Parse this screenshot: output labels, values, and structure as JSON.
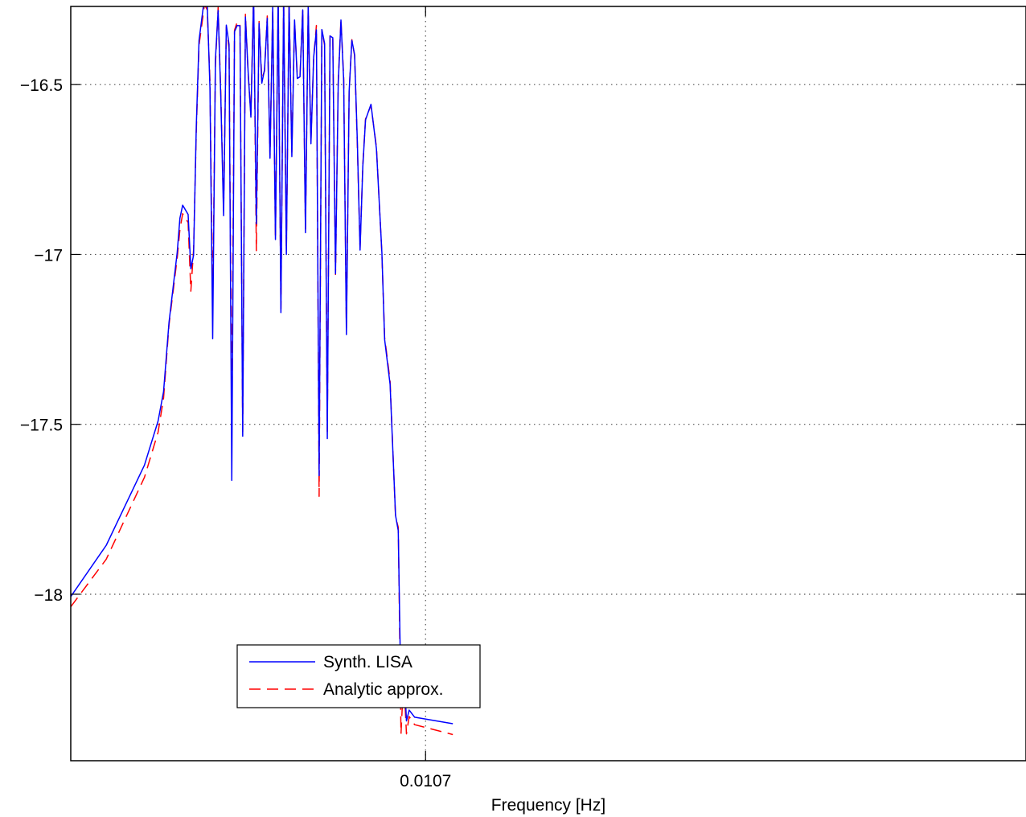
{
  "chart_data": {
    "type": "line",
    "title": "",
    "xlabel": "Frequency [Hz]",
    "ylabel": "",
    "xtick_labels": [
      {
        "value": 0.0107,
        "label": "0.0107"
      }
    ],
    "ytick_labels": [
      {
        "value": -16.5,
        "label": "−16.5"
      },
      {
        "value": -17.0,
        "label": "−17"
      },
      {
        "value": -17.5,
        "label": "−17.5"
      },
      {
        "value": -18.0,
        "label": "−18"
      }
    ],
    "xlim": [
      0.01057,
      0.01092
    ],
    "ylim": [
      -18.49,
      -16.27
    ],
    "grid": true,
    "legend_position": "lower-left",
    "series": [
      {
        "name": "Synth. LISA",
        "color": "#0000ff",
        "style": "solid",
        "points": [
          [
            0.01057,
            -18.007
          ],
          [
            0.010583,
            -17.856
          ],
          [
            0.010597,
            -17.62
          ],
          [
            0.010602,
            -17.49
          ],
          [
            0.010604,
            -17.404
          ],
          [
            0.010606,
            -17.2
          ],
          [
            0.010609,
            -16.994
          ],
          [
            0.01061,
            -16.893
          ],
          [
            0.010611,
            -16.855
          ],
          [
            0.010613,
            -16.882
          ],
          [
            0.010614,
            -17.042
          ],
          [
            0.010615,
            -17.002
          ],
          [
            0.010616,
            -16.621
          ],
          [
            0.010617,
            -16.37
          ],
          [
            0.010619,
            -16.244
          ],
          [
            0.01062,
            -16.262
          ],
          [
            0.010621,
            -16.509
          ],
          [
            0.010622,
            -17.248
          ],
          [
            0.010623,
            -16.426
          ],
          [
            0.010624,
            -16.282
          ],
          [
            0.010625,
            -16.544
          ],
          [
            0.010626,
            -16.886
          ],
          [
            0.010627,
            -16.325
          ],
          [
            0.010628,
            -16.382
          ],
          [
            0.010629,
            -17.665
          ],
          [
            0.01063,
            -16.344
          ],
          [
            0.010631,
            -16.326
          ],
          [
            0.010632,
            -16.327
          ],
          [
            0.010633,
            -17.535
          ],
          [
            0.010634,
            -16.301
          ],
          [
            0.010635,
            -16.464
          ],
          [
            0.010636,
            -16.596
          ],
          [
            0.010637,
            -16.236
          ],
          [
            0.010638,
            -16.91
          ],
          [
            0.010639,
            -16.32
          ],
          [
            0.01064,
            -16.496
          ],
          [
            0.010641,
            -16.456
          ],
          [
            0.010642,
            -16.305
          ],
          [
            0.010643,
            -16.717
          ],
          [
            0.010644,
            -16.273
          ],
          [
            0.010645,
            -16.956
          ],
          [
            0.010646,
            -16.236
          ],
          [
            0.010647,
            -17.171
          ],
          [
            0.010648,
            -16.238
          ],
          [
            0.010649,
            -17.0
          ],
          [
            0.01065,
            -16.259
          ],
          [
            0.010651,
            -16.712
          ],
          [
            0.010652,
            -16.31
          ],
          [
            0.010653,
            -16.482
          ],
          [
            0.010654,
            -16.477
          ],
          [
            0.010655,
            -16.28
          ],
          [
            0.010656,
            -16.936
          ],
          [
            0.010657,
            -16.269
          ],
          [
            0.010658,
            -16.674
          ],
          [
            0.010659,
            -16.42
          ],
          [
            0.01066,
            -16.339
          ],
          [
            0.010661,
            -17.651
          ],
          [
            0.010662,
            -16.338
          ],
          [
            0.010663,
            -16.379
          ],
          [
            0.010664,
            -17.542
          ],
          [
            0.010665,
            -16.357
          ],
          [
            0.010666,
            -16.362
          ],
          [
            0.010667,
            -17.057
          ],
          [
            0.010668,
            -16.498
          ],
          [
            0.010669,
            -16.31
          ],
          [
            0.01067,
            -16.487
          ],
          [
            0.010671,
            -17.236
          ],
          [
            0.010672,
            -16.519
          ],
          [
            0.010673,
            -16.37
          ],
          [
            0.010674,
            -16.412
          ],
          [
            0.010675,
            -16.667
          ],
          [
            0.010676,
            -16.987
          ],
          [
            0.010677,
            -16.742
          ],
          [
            0.010678,
            -16.604
          ],
          [
            0.01068,
            -16.558
          ],
          [
            0.010682,
            -16.689
          ],
          [
            0.010684,
            -16.995
          ],
          [
            0.010685,
            -17.25
          ],
          [
            0.010687,
            -17.382
          ],
          [
            0.010689,
            -17.768
          ],
          [
            0.01069,
            -17.813
          ],
          [
            0.010691,
            -18.317
          ],
          [
            0.010692,
            -18.206
          ],
          [
            0.010693,
            -18.373
          ],
          [
            0.010694,
            -18.341
          ],
          [
            0.010696,
            -18.362
          ],
          [
            0.01071,
            -18.381
          ]
        ]
      },
      {
        "name": "Analytic approx.",
        "color": "#ff0000",
        "style": "dashed",
        "points": [
          [
            0.01057,
            -18.037
          ],
          [
            0.010583,
            -17.897
          ],
          [
            0.010597,
            -17.656
          ],
          [
            0.010602,
            -17.523
          ],
          [
            0.010604,
            -17.423
          ],
          [
            0.010606,
            -17.207
          ],
          [
            0.010609,
            -17.01
          ],
          [
            0.01061,
            -16.926
          ],
          [
            0.010611,
            -16.88
          ],
          [
            0.010613,
            -16.906
          ],
          [
            0.010614,
            -17.108
          ],
          [
            0.010615,
            -16.986
          ],
          [
            0.010616,
            -16.636
          ],
          [
            0.010617,
            -16.384
          ],
          [
            0.010619,
            -16.264
          ],
          [
            0.01062,
            -16.28
          ],
          [
            0.010621,
            -16.487
          ],
          [
            0.010622,
            -17.155
          ],
          [
            0.010623,
            -16.443
          ],
          [
            0.010624,
            -16.273
          ],
          [
            0.010625,
            -16.533
          ],
          [
            0.010626,
            -16.871
          ],
          [
            0.010627,
            -16.33
          ],
          [
            0.010628,
            -16.395
          ],
          [
            0.010629,
            -17.48
          ],
          [
            0.01063,
            -16.34
          ],
          [
            0.010631,
            -16.315
          ],
          [
            0.010632,
            -16.321
          ],
          [
            0.010633,
            -17.522
          ],
          [
            0.010634,
            -16.293
          ],
          [
            0.010635,
            -16.47
          ],
          [
            0.010636,
            -16.589
          ],
          [
            0.010637,
            -16.234
          ],
          [
            0.010638,
            -16.989
          ],
          [
            0.010639,
            -16.314
          ],
          [
            0.01064,
            -16.483
          ],
          [
            0.010641,
            -16.46
          ],
          [
            0.010642,
            -16.298
          ],
          [
            0.010643,
            -16.714
          ],
          [
            0.010644,
            -16.276
          ],
          [
            0.010645,
            -16.953
          ],
          [
            0.010646,
            -16.24
          ],
          [
            0.010647,
            -17.16
          ],
          [
            0.010648,
            -16.249
          ],
          [
            0.010649,
            -16.988
          ],
          [
            0.01065,
            -16.258
          ],
          [
            0.010651,
            -16.699
          ],
          [
            0.010652,
            -16.314
          ],
          [
            0.010653,
            -16.474
          ],
          [
            0.010654,
            -16.472
          ],
          [
            0.010655,
            -16.279
          ],
          [
            0.010656,
            -16.925
          ],
          [
            0.010657,
            -16.276
          ],
          [
            0.010658,
            -16.664
          ],
          [
            0.010659,
            -16.421
          ],
          [
            0.01066,
            -16.326
          ],
          [
            0.010661,
            -17.712
          ],
          [
            0.010662,
            -16.339
          ],
          [
            0.010663,
            -16.384
          ],
          [
            0.010664,
            -17.521
          ],
          [
            0.010665,
            -16.354
          ],
          [
            0.010666,
            -16.355
          ],
          [
            0.010667,
            -17.059
          ],
          [
            0.010668,
            -16.491
          ],
          [
            0.010669,
            -16.309
          ],
          [
            0.01067,
            -16.48
          ],
          [
            0.010671,
            -17.217
          ],
          [
            0.010672,
            -16.519
          ],
          [
            0.010673,
            -16.368
          ],
          [
            0.010674,
            -16.415
          ],
          [
            0.010675,
            -16.677
          ],
          [
            0.010676,
            -16.98
          ],
          [
            0.010677,
            -16.738
          ],
          [
            0.010678,
            -16.601
          ],
          [
            0.01068,
            -16.561
          ],
          [
            0.010682,
            -16.684
          ],
          [
            0.010684,
            -16.999
          ],
          [
            0.010685,
            -17.244
          ],
          [
            0.010687,
            -17.371
          ],
          [
            0.010689,
            -17.773
          ],
          [
            0.01069,
            -17.803
          ],
          [
            0.010691,
            -18.411
          ],
          [
            0.010692,
            -18.241
          ],
          [
            0.010693,
            -18.411
          ],
          [
            0.010694,
            -18.36
          ],
          [
            0.010696,
            -18.384
          ],
          [
            0.01071,
            -18.413
          ]
        ]
      }
    ]
  }
}
